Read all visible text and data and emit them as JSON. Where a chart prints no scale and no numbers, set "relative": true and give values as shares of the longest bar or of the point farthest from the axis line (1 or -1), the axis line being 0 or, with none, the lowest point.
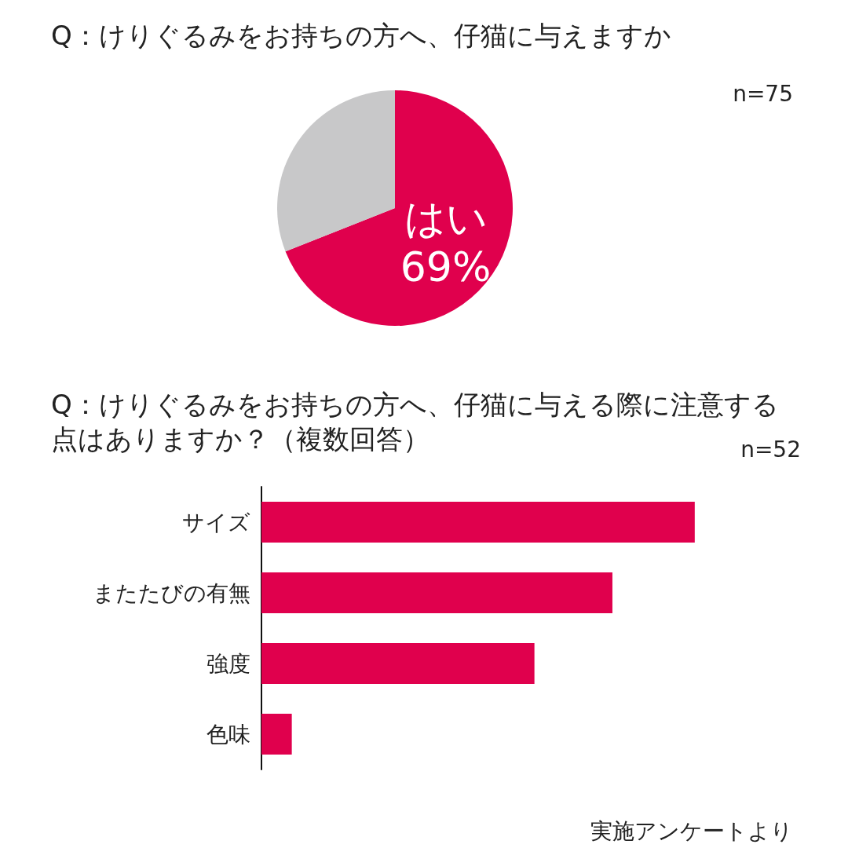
{
  "chart_data": [
    {
      "type": "pie",
      "title": "Q：けりぐるみをお持ちの方へ、仔猫に与えますか",
      "annotations": [
        "n=75"
      ],
      "categories": [
        "はい",
        null
      ],
      "values": [
        69,
        31
      ],
      "value_labels": [
        "69%",
        null
      ],
      "colors": [
        "#e0004d",
        "#c8c8c9"
      ]
    },
    {
      "type": "bar",
      "orientation": "horizontal",
      "relative": true,
      "title": "Q：けりぐるみをお持ちの方へ、仔猫に与える際に注意する点はありますか？（複数回答）",
      "annotations": [
        "n=52",
        "実施アンケートより"
      ],
      "categories": [
        "サイズ",
        "またたびの有無",
        "強度",
        "色味"
      ],
      "values": [
        1,
        0.81,
        0.63,
        0.07
      ],
      "color": "#e0004d"
    }
  ]
}
